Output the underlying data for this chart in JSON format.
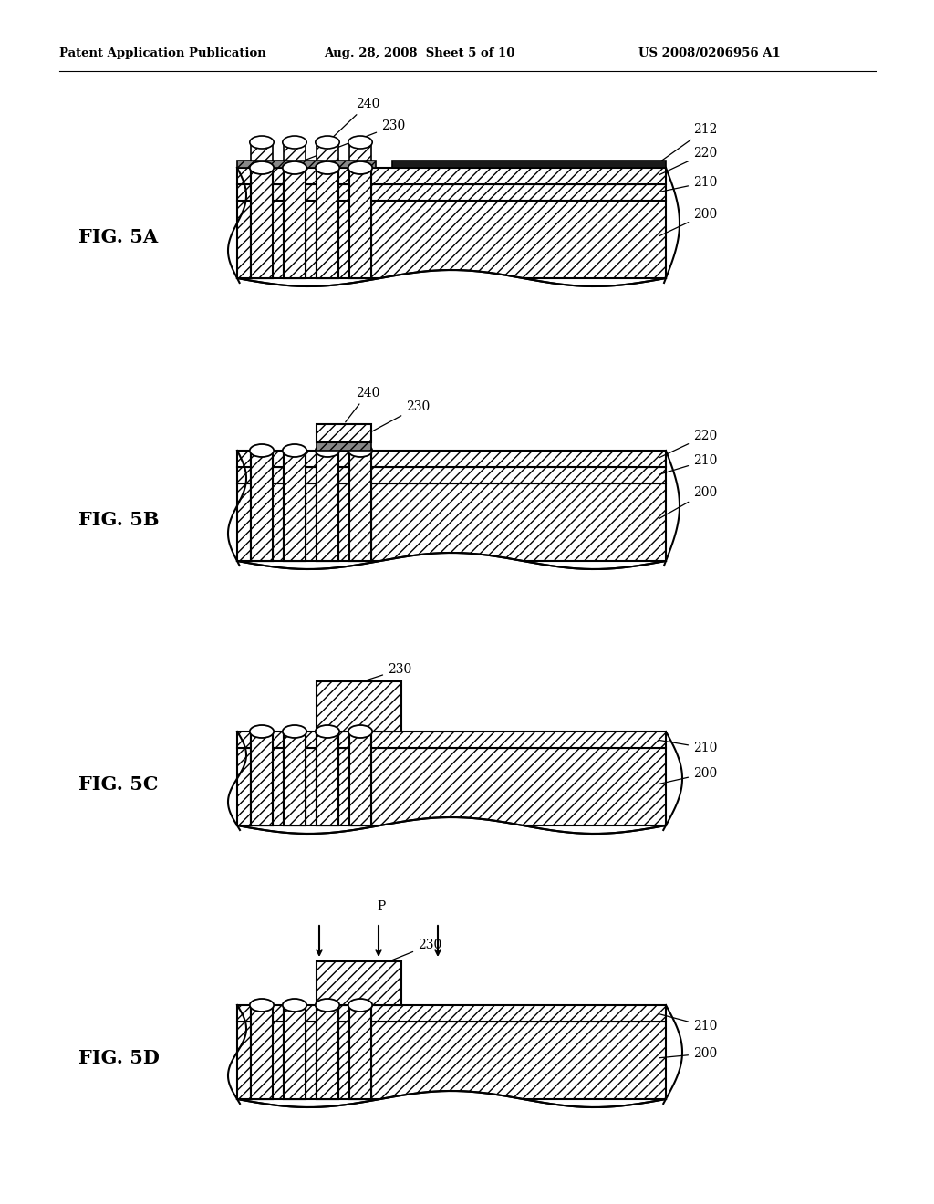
{
  "title_left": "Patent Application Publication",
  "title_mid": "Aug. 28, 2008  Sheet 5 of 10",
  "title_right": "US 2008/0206956 A1",
  "background_color": "#ffffff"
}
